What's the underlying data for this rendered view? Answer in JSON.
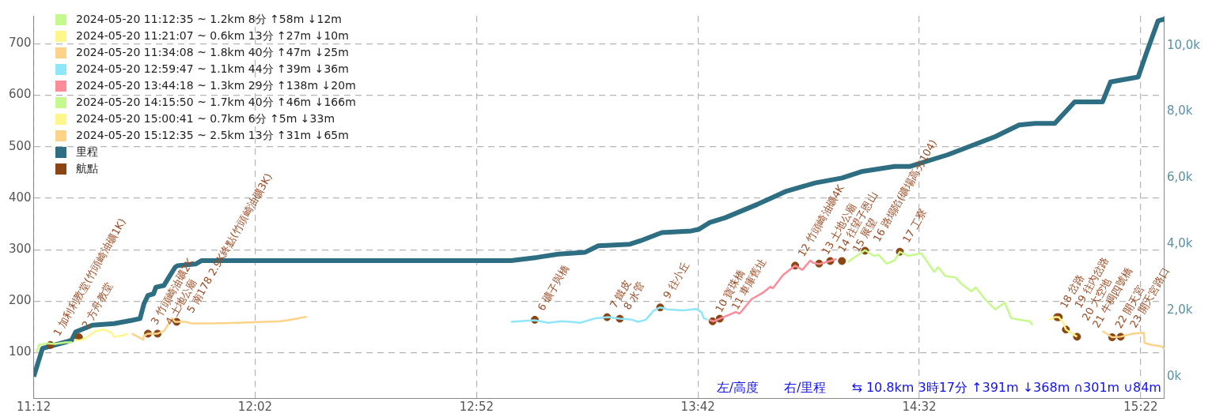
{
  "chart_data": {
    "type": "line",
    "legend": "top left",
    "grid": true,
    "xlim": [
      11.2,
      15.456
    ],
    "xticks": [
      {
        "value": 11.2,
        "label": "11:12"
      },
      {
        "value": 12.0333,
        "label": "12:02"
      },
      {
        "value": 12.8667,
        "label": "12:52"
      },
      {
        "value": 13.7,
        "label": "13:42"
      },
      {
        "value": 14.5333,
        "label": "14:32"
      },
      {
        "value": 15.3667,
        "label": "15:22"
      }
    ],
    "ylim": [
      12,
      754
    ],
    "yticks": [
      100,
      200,
      300,
      400,
      500,
      600,
      700
    ],
    "y2lim": [
      -650,
      10900
    ],
    "y2ticks": [
      {
        "value": 0,
        "label": "0k"
      },
      {
        "value": 2000,
        "label": "2,0k"
      },
      {
        "value": 4000,
        "label": "4,0k"
      },
      {
        "value": 6000,
        "label": "6,0k"
      },
      {
        "value": 8000,
        "label": "8,0k"
      },
      {
        "value": 10000,
        "label": "10,0k"
      }
    ],
    "series": [
      {
        "name": "2024-05-20 11:12:35 ~ 1.2km 8分 ↑58m ↓12m",
        "type": "line",
        "color": "#c6f98d",
        "x": [
          11.21,
          11.22,
          11.25,
          11.28,
          11.32,
          11.345
        ],
        "values": [
          100,
          115,
          118,
          117,
          120,
          120
        ]
      },
      {
        "name": "2024-05-20 11:21:07 ~ 0.6km 13分 ↑27m ↓10m",
        "type": "line",
        "color": "#fdf68a",
        "x": [
          11.352,
          11.373,
          11.391,
          11.433,
          11.463,
          11.493,
          11.502,
          11.532,
          11.553
        ],
        "values": [
          125,
          124,
          127,
          142,
          145,
          139,
          131,
          133,
          137
        ]
      },
      {
        "name": "2024-05-20 11:34:08 ~ 1.8km 40分 ↑47m ↓25m",
        "type": "line",
        "color": "#fdd38a",
        "x": [
          11.569,
          11.592,
          11.612,
          11.615,
          11.63,
          11.666,
          11.69,
          11.705,
          11.72,
          11.732,
          11.771,
          11.792,
          11.869,
          11.971,
          12.129,
          12.168,
          12.189,
          12.228
        ],
        "values": [
          137,
          131,
          125,
          133,
          137,
          137,
          142,
          154,
          167,
          160,
          160,
          157,
          157,
          158,
          161,
          164,
          166,
          170
        ]
      },
      {
        "name": "2024-05-20 12:59:47 ~ 1.1km 44分 ↑39m ↓36m",
        "type": "line",
        "color": "#8fe6fb",
        "x": [
          12.996,
          13.086,
          13.137,
          13.184,
          13.226,
          13.256,
          13.316,
          13.361,
          13.406,
          13.453,
          13.474,
          13.504,
          13.534,
          13.558,
          13.585,
          13.645,
          13.693,
          13.713,
          13.722,
          13.737
        ],
        "values": [
          160,
          163,
          158,
          161,
          160,
          158,
          167,
          169,
          166,
          164,
          160,
          164,
          182,
          188,
          184,
          182,
          185,
          179,
          167,
          164
        ]
      },
      {
        "name": "2024-05-20 13:44:18 ~ 1.3km 29分 ↑138m ↓20m",
        "type": "line",
        "color": "#fd8c99",
        "x": [
          13.743,
          13.758,
          13.782,
          13.842,
          13.857,
          13.902,
          13.943,
          13.973,
          13.982,
          14.021,
          14.066,
          14.093,
          14.123,
          14.132,
          14.156,
          14.198,
          14.222
        ],
        "values": [
          164,
          161,
          166,
          179,
          176,
          204,
          216,
          228,
          225,
          251,
          269,
          261,
          279,
          275,
          272,
          278,
          282
        ]
      },
      {
        "name": "2024-05-20 14:15:50 ~ 1.7km 40分 ↑46m ↓166m",
        "type": "line",
        "color": "#c6f98d",
        "x": [
          14.264,
          14.329,
          14.362,
          14.38,
          14.41,
          14.44,
          14.46,
          14.49,
          14.541,
          14.589,
          14.604,
          14.631,
          14.67,
          14.691,
          14.73,
          14.745,
          14.781,
          14.819,
          14.855,
          14.879,
          14.909,
          14.948,
          14.96
        ],
        "values": [
          276,
          299,
          288,
          290,
          273,
          279,
          296,
          288,
          293,
          257,
          266,
          249,
          246,
          234,
          219,
          227,
          204,
          184,
          197,
          167,
          164,
          161,
          154
        ]
      },
      {
        "name": "2024-05-20 15:00:41 ~ 0.7km 6分 ↑5m ↓33m",
        "type": "line",
        "color": "#fdf68a",
        "x": [
          15.022,
          15.043,
          15.058,
          15.073,
          15.085,
          15.109,
          15.127
        ],
        "values": [
          164,
          169,
          169,
          160,
          145,
          137,
          131
        ]
      },
      {
        "name": "2024-05-20 15:12:35 ~ 2.5km 13分 ↑31m ↓65m",
        "type": "line",
        "color": "#fdd38a",
        "x": [
          15.223,
          15.238,
          15.259,
          15.291,
          15.336,
          15.378,
          15.381,
          15.408,
          15.447,
          15.456
        ],
        "values": [
          142,
          137,
          130,
          131,
          137,
          139,
          119,
          115,
          112,
          107
        ]
      },
      {
        "name": "里程",
        "type": "line",
        "axis": "y2",
        "color": "#2e6e82",
        "x": [
          11.2,
          11.233,
          11.323,
          11.343,
          11.358,
          11.421,
          11.502,
          11.571,
          11.6,
          11.615,
          11.63,
          11.651,
          11.66,
          11.69,
          11.705,
          11.732,
          11.741,
          11.81,
          11.831,
          12.996,
          13.095,
          13.175,
          13.274,
          13.325,
          13.444,
          13.483,
          13.564,
          13.675,
          13.704,
          13.743,
          13.803,
          13.923,
          14.033,
          14.141,
          14.242,
          14.32,
          14.44,
          14.499,
          14.64,
          14.819,
          14.909,
          14.969,
          15.043,
          15.118,
          15.223,
          15.253,
          15.357,
          15.387,
          15.432,
          15.456
        ],
        "values": [
          0,
          850,
          1050,
          1100,
          1350,
          1550,
          1600,
          1700,
          1750,
          2200,
          2450,
          2500,
          2700,
          2750,
          2950,
          3300,
          3350,
          3400,
          3500,
          3500,
          3600,
          3700,
          3750,
          3950,
          4000,
          4100,
          4350,
          4400,
          4450,
          4650,
          4800,
          5200,
          5600,
          5850,
          6000,
          6200,
          6350,
          6350,
          6700,
          7250,
          7600,
          7650,
          7650,
          8300,
          8300,
          8900,
          9050,
          9750,
          10750,
          10800
        ]
      },
      {
        "name": "航點",
        "type": "scatter",
        "marker": "circle",
        "color": "#8b4513",
        "x": [
          11.263,
          11.37,
          11.63,
          11.666,
          11.738,
          13.086,
          13.358,
          13.406,
          13.558,
          13.755,
          13.782,
          14.066,
          14.156,
          14.198,
          14.242,
          14.329,
          14.46,
          15.052,
          15.058,
          15.085,
          15.127,
          15.259,
          15.291
        ],
        "values": [
          115,
          130,
          137,
          137,
          160,
          164,
          169,
          166,
          188,
          161,
          166,
          269,
          273,
          278,
          278,
          298,
          296,
          169,
          169,
          145,
          131,
          130,
          131
        ]
      }
    ],
    "annotations": [
      {
        "text": "1 加利利教堂(竹頭崎油礦1K)",
        "x": 11.263,
        "y": 115
      },
      {
        "text": "2 方舟教堂",
        "x": 11.37,
        "y": 130
      },
      {
        "text": "3 竹頭崎油礦2K",
        "x": 11.63,
        "y": 137
      },
      {
        "text": "4 土地公廟",
        "x": 11.666,
        "y": 137
      },
      {
        "text": "5 南178 2.9K終點(竹頭崎油礦3K)",
        "x": 11.738,
        "y": 160
      },
      {
        "text": "6 礦子與橋",
        "x": 13.086,
        "y": 164
      },
      {
        "text": "7 鐵皮",
        "x": 13.358,
        "y": 169
      },
      {
        "text": "8 水管",
        "x": 13.406,
        "y": 166
      },
      {
        "text": "9 往小丘",
        "x": 13.558,
        "y": 188
      },
      {
        "text": "10 寶珠橋",
        "x": 13.755,
        "y": 161
      },
      {
        "text": "11 車庫舊址",
        "x": 13.782,
        "y": 166
      },
      {
        "text": "12 竹頭崎油礦4K",
        "x": 14.066,
        "y": 269
      },
      {
        "text": "13 土地公廟",
        "x": 14.156,
        "y": 273
      },
      {
        "text": "14 往望子恩山",
        "x": 14.198,
        "y": 278
      },
      {
        "text": "15 展望",
        "x": 14.242,
        "y": 278
      },
      {
        "text": "16 路塌陷(礦場高分104)",
        "x": 14.329,
        "y": 298
      },
      {
        "text": "17 工寮",
        "x": 14.46,
        "y": 296
      },
      {
        "text": "18 岔路",
        "x": 15.052,
        "y": 169
      },
      {
        "text": "19 往內岔路",
        "x": 15.058,
        "y": 169
      },
      {
        "text": "20 大空地",
        "x": 15.085,
        "y": 145
      },
      {
        "text": "21 牛稠四號橋",
        "x": 15.127,
        "y": 131
      },
      {
        "text": "22 開天宮",
        "x": 15.259,
        "y": 130
      },
      {
        "text": "23 開天宮路口",
        "x": 15.291,
        "y": 131
      },
      "左/高度　　右/里程　　⇆ 10.8km 3時17分 ↑391m ↓368m ∩301m ∪84m"
    ]
  }
}
